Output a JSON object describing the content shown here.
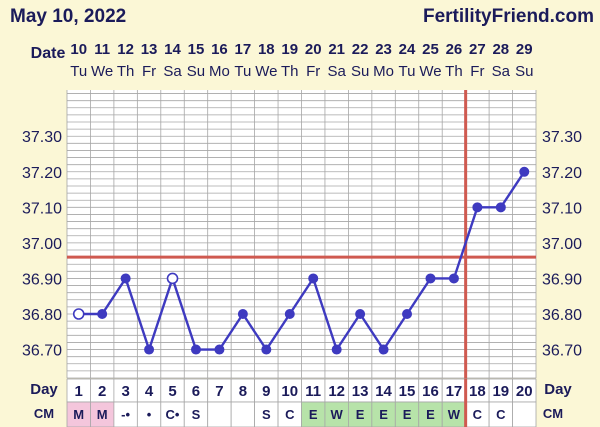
{
  "header": {
    "date": "May 10, 2022",
    "brand": "FertilityFriend.com"
  },
  "labels": {
    "date": "Date",
    "day": "Day",
    "cm": "CM"
  },
  "colors": {
    "background": "#fbf7d6",
    "plot_background": "#ffffff",
    "grid": "#a6a6a6",
    "line": "#3e3ac0",
    "coverline": "#cf5a50",
    "ovulation_line": "#cf5a50",
    "menses_cell": "#f4c6dc",
    "egg_white_cell": "#b7e3a9"
  },
  "chart_data": {
    "type": "line",
    "dates": [
      "10",
      "11",
      "12",
      "13",
      "14",
      "15",
      "16",
      "17",
      "18",
      "19",
      "20",
      "21",
      "22",
      "23",
      "24",
      "25",
      "26",
      "27",
      "28",
      "29"
    ],
    "weekdays": [
      "Tu",
      "We",
      "Th",
      "Fr",
      "Sa",
      "Su",
      "Mo",
      "Tu",
      "We",
      "Th",
      "Fr",
      "Sa",
      "Su",
      "Mo",
      "Tu",
      "We",
      "Th",
      "Fr",
      "Sa",
      "Su"
    ],
    "days": [
      "1",
      "2",
      "3",
      "4",
      "5",
      "6",
      "7",
      "8",
      "9",
      "10",
      "11",
      "12",
      "13",
      "14",
      "15",
      "16",
      "17",
      "18",
      "19",
      "20"
    ],
    "temperatures": [
      36.8,
      36.8,
      36.9,
      36.7,
      36.9,
      36.7,
      36.7,
      36.8,
      36.7,
      36.8,
      36.9,
      36.7,
      36.8,
      36.7,
      36.8,
      36.9,
      36.9,
      37.1,
      37.1,
      37.2
    ],
    "open_points": [
      1,
      5
    ],
    "y_ticks": [
      "37.30",
      "37.20",
      "37.10",
      "37.00",
      "36.90",
      "36.80",
      "36.70"
    ],
    "ylim": [
      36.62,
      37.43
    ],
    "coverline": 36.96,
    "ovulation_day": 17,
    "cervical_mucus": [
      {
        "text": "M",
        "type": "menses"
      },
      {
        "text": "M",
        "type": "menses"
      },
      {
        "text": "-•",
        "type": "none"
      },
      {
        "text": "•",
        "type": "none"
      },
      {
        "text": "C•",
        "type": "none"
      },
      {
        "text": "S",
        "type": "none"
      },
      {
        "text": "",
        "type": "none"
      },
      {
        "text": "",
        "type": "none"
      },
      {
        "text": "S",
        "type": "none"
      },
      {
        "text": "C",
        "type": "none"
      },
      {
        "text": "E",
        "type": "egg"
      },
      {
        "text": "W",
        "type": "egg"
      },
      {
        "text": "E",
        "type": "egg"
      },
      {
        "text": "E",
        "type": "egg"
      },
      {
        "text": "E",
        "type": "egg"
      },
      {
        "text": "E",
        "type": "egg"
      },
      {
        "text": "W",
        "type": "egg"
      },
      {
        "text": "C",
        "type": "none"
      },
      {
        "text": "C",
        "type": "none"
      },
      {
        "text": "",
        "type": "none"
      }
    ]
  }
}
